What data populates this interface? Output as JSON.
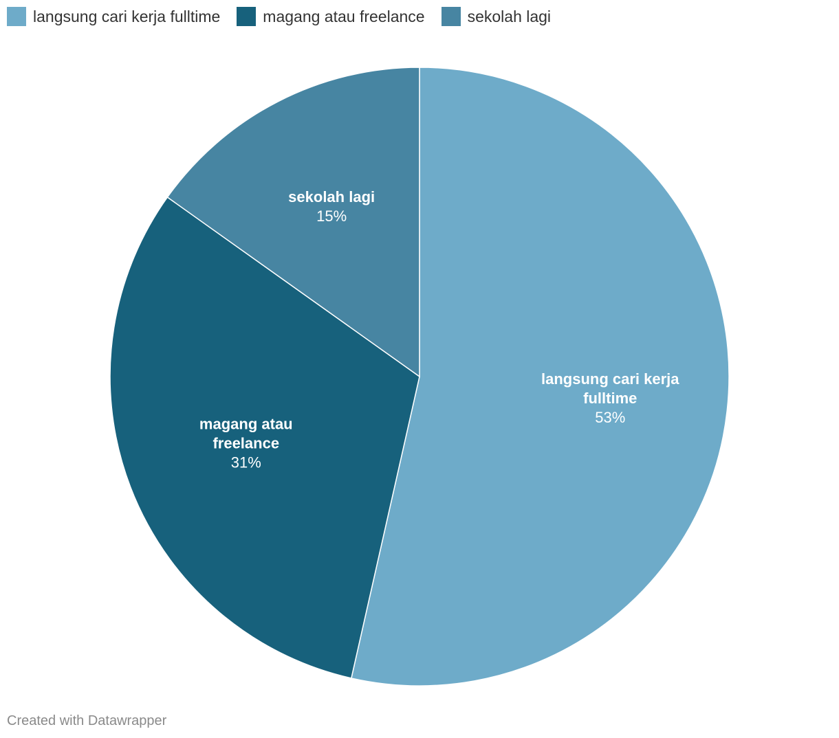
{
  "chart_data": {
    "type": "pie",
    "categories": [
      "langsung cari kerja fulltime",
      "magang atau freelance",
      "sekolah lagi"
    ],
    "values": [
      53,
      31,
      15
    ],
    "value_labels": [
      "53%",
      "31%",
      "15%"
    ],
    "label_lines": [
      [
        "langsung cari kerja",
        "fulltime"
      ],
      [
        "magang atau",
        "freelance"
      ],
      [
        "sekolah lagi"
      ]
    ],
    "colors": [
      "#6eabc9",
      "#17617c",
      "#4785a2"
    ],
    "legend_position": "top-left",
    "title": "",
    "xlabel": "",
    "ylabel": ""
  },
  "legend": {
    "items": [
      {
        "label": "langsung cari kerja fulltime",
        "color": "#6eabc9"
      },
      {
        "label": "magang atau freelance",
        "color": "#17617c"
      },
      {
        "label": "sekolah lagi",
        "color": "#4785a2"
      }
    ]
  },
  "footer": {
    "credit": "Created with Datawrapper"
  }
}
